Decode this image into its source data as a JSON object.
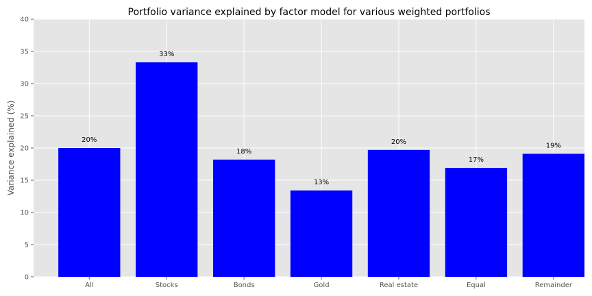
{
  "chart_data": {
    "type": "bar",
    "title": "Portfolio variance explained by factor model for various weighted portfolios",
    "xlabel": "",
    "ylabel": "Variance explained (%)",
    "categories": [
      "All",
      "Stocks",
      "Bonds",
      "Gold",
      "Real estate",
      "Equal",
      "Remainder"
    ],
    "values": [
      20.0,
      33.3,
      18.2,
      13.4,
      19.7,
      16.9,
      19.1
    ],
    "data_labels": [
      "20%",
      "33%",
      "18%",
      "13%",
      "20%",
      "17%",
      "19%"
    ],
    "ylim": [
      0,
      40
    ],
    "yticks": [
      "0",
      "5",
      "10",
      "15",
      "20",
      "25",
      "30",
      "35",
      "40"
    ],
    "grid": true,
    "legend": "none",
    "bar_color": "#0000ff",
    "plot_background": "#e5e5e5"
  }
}
